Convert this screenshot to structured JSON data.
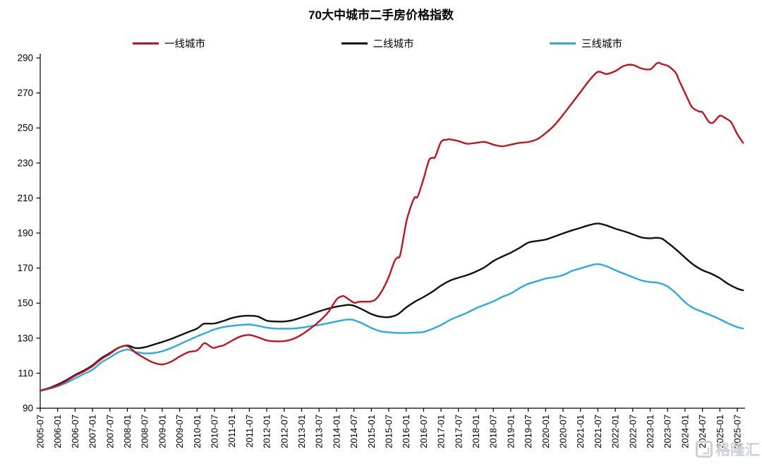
{
  "chart": {
    "title": "70大中城市二手房价格指数"
  },
  "watermark": {
    "text": "格隆汇",
    "icon": "gelonghui-logo",
    "color": "#ccd0d6"
  },
  "chart_data": {
    "type": "line",
    "title": "70大中城市二手房价格指数",
    "xlabel": "",
    "ylabel": "",
    "grid": false,
    "legend_position": "top",
    "ylim": [
      90,
      290
    ],
    "ytick_step": 20,
    "y_tick_labels": [
      "90",
      "110",
      "130",
      "150",
      "170",
      "190",
      "210",
      "230",
      "250",
      "270",
      "290"
    ],
    "x_unit": "months_since_2005-07",
    "x_tick_interval_months": 6,
    "x_tick_labels": [
      "2005-07",
      "2006-01",
      "2006-07",
      "2007-01",
      "2007-07",
      "2008-01",
      "2008-07",
      "2009-01",
      "2009-07",
      "2010-01",
      "2010-07",
      "2011-01",
      "2011-07",
      "2012-01",
      "2012-07",
      "2013-01",
      "2013-07",
      "2014-01",
      "2014-07",
      "2015-01",
      "2015-07",
      "2016-01",
      "2016-07",
      "2017-01",
      "2017-07",
      "2018-01",
      "2018-07",
      "2019-01",
      "2019-07",
      "2020-01",
      "2020-07",
      "2021-01",
      "2021-07",
      "2022-01",
      "2022-07",
      "2023-01",
      "2023-07",
      "2024-01",
      "2024-07",
      "2025-01",
      "2025-07"
    ],
    "series": [
      {
        "name": "二线城市",
        "slug": "second-tier",
        "color": "#111111",
        "points": [
          [
            0,
            100
          ],
          [
            3,
            101.5
          ],
          [
            6,
            103.5
          ],
          [
            9,
            106
          ],
          [
            12,
            109
          ],
          [
            15,
            111.5
          ],
          [
            18,
            114.5
          ],
          [
            21,
            118.5
          ],
          [
            24,
            121.5
          ],
          [
            27,
            124.5
          ],
          [
            30,
            125.8
          ],
          [
            33,
            124.3
          ],
          [
            36,
            124.8
          ],
          [
            39,
            126.3
          ],
          [
            42,
            127.8
          ],
          [
            45,
            129.5
          ],
          [
            48,
            131.5
          ],
          [
            51,
            133.5
          ],
          [
            54,
            135.5
          ],
          [
            56,
            138
          ],
          [
            57,
            138.3
          ],
          [
            60,
            138.4
          ],
          [
            63,
            139.8
          ],
          [
            66,
            141.5
          ],
          [
            69,
            142.5
          ],
          [
            72,
            142.8
          ],
          [
            75,
            142.3
          ],
          [
            78,
            140
          ],
          [
            81,
            139.5
          ],
          [
            84,
            139.5
          ],
          [
            87,
            140.3
          ],
          [
            90,
            141.8
          ],
          [
            93,
            143.5
          ],
          [
            96,
            145.3
          ],
          [
            99,
            146.8
          ],
          [
            102,
            148
          ],
          [
            105,
            148.8
          ],
          [
            106,
            149
          ],
          [
            108,
            148.5
          ],
          [
            111,
            146.3
          ],
          [
            114,
            143.8
          ],
          [
            117,
            142.3
          ],
          [
            120,
            142
          ],
          [
            123,
            143.5
          ],
          [
            126,
            147.5
          ],
          [
            129,
            150.8
          ],
          [
            132,
            153.5
          ],
          [
            135,
            156.5
          ],
          [
            138,
            160
          ],
          [
            141,
            162.8
          ],
          [
            144,
            164.5
          ],
          [
            147,
            166
          ],
          [
            150,
            168
          ],
          [
            153,
            170.5
          ],
          [
            156,
            174
          ],
          [
            159,
            176.5
          ],
          [
            162,
            178.8
          ],
          [
            165,
            181.5
          ],
          [
            168,
            184.5
          ],
          [
            171,
            185.5
          ],
          [
            174,
            186.3
          ],
          [
            177,
            188
          ],
          [
            180,
            189.8
          ],
          [
            183,
            191.5
          ],
          [
            186,
            193
          ],
          [
            189,
            194.5
          ],
          [
            192,
            195.5
          ],
          [
            195,
            194.3
          ],
          [
            198,
            192.5
          ],
          [
            201,
            191
          ],
          [
            204,
            189.3
          ],
          [
            207,
            187.5
          ],
          [
            210,
            187
          ],
          [
            212,
            187.3
          ],
          [
            214,
            186.8
          ],
          [
            216,
            184.5
          ],
          [
            219,
            180.5
          ],
          [
            222,
            176
          ],
          [
            225,
            171.8
          ],
          [
            228,
            168.8
          ],
          [
            231,
            166.8
          ],
          [
            234,
            164.2
          ],
          [
            237,
            160.8
          ],
          [
            240,
            158.3
          ],
          [
            242,
            157.3
          ]
        ]
      },
      {
        "name": "三线城市",
        "slug": "third-tier",
        "color": "#29ABE2",
        "points": [
          [
            0,
            100
          ],
          [
            3,
            101
          ],
          [
            6,
            102.5
          ],
          [
            9,
            104.5
          ],
          [
            12,
            107
          ],
          [
            15,
            109.5
          ],
          [
            18,
            112
          ],
          [
            21,
            116
          ],
          [
            24,
            119
          ],
          [
            27,
            122
          ],
          [
            30,
            123.5
          ],
          [
            33,
            122
          ],
          [
            36,
            121.3
          ],
          [
            39,
            121.5
          ],
          [
            42,
            122.5
          ],
          [
            45,
            124.3
          ],
          [
            48,
            126.5
          ],
          [
            51,
            128.8
          ],
          [
            54,
            131
          ],
          [
            57,
            133
          ],
          [
            60,
            135
          ],
          [
            63,
            136.3
          ],
          [
            66,
            137
          ],
          [
            69,
            137.5
          ],
          [
            72,
            137.8
          ],
          [
            75,
            137
          ],
          [
            78,
            136
          ],
          [
            81,
            135.5
          ],
          [
            84,
            135.4
          ],
          [
            87,
            135.5
          ],
          [
            90,
            136
          ],
          [
            93,
            136.8
          ],
          [
            96,
            137.5
          ],
          [
            99,
            138.5
          ],
          [
            102,
            139.5
          ],
          [
            105,
            140.5
          ],
          [
            107,
            140.6
          ],
          [
            108,
            140.3
          ],
          [
            111,
            138.3
          ],
          [
            114,
            135.8
          ],
          [
            117,
            134
          ],
          [
            120,
            133.3
          ],
          [
            123,
            133
          ],
          [
            126,
            133
          ],
          [
            129,
            133.2
          ],
          [
            132,
            133.5
          ],
          [
            135,
            135.3
          ],
          [
            138,
            137.5
          ],
          [
            141,
            140.3
          ],
          [
            144,
            142.5
          ],
          [
            147,
            144.5
          ],
          [
            150,
            147
          ],
          [
            153,
            149
          ],
          [
            156,
            151
          ],
          [
            159,
            153.5
          ],
          [
            162,
            155.5
          ],
          [
            165,
            158.5
          ],
          [
            168,
            161
          ],
          [
            171,
            162.5
          ],
          [
            174,
            164
          ],
          [
            177,
            164.8
          ],
          [
            180,
            166
          ],
          [
            183,
            168.3
          ],
          [
            186,
            169.8
          ],
          [
            189,
            171.3
          ],
          [
            192,
            172.3
          ],
          [
            195,
            171
          ],
          [
            198,
            168.8
          ],
          [
            201,
            166.8
          ],
          [
            204,
            164.8
          ],
          [
            207,
            163
          ],
          [
            210,
            162
          ],
          [
            213,
            161.5
          ],
          [
            216,
            159.5
          ],
          [
            219,
            155.5
          ],
          [
            222,
            150.5
          ],
          [
            225,
            147
          ],
          [
            228,
            145
          ],
          [
            231,
            143
          ],
          [
            234,
            140.8
          ],
          [
            237,
            138.3
          ],
          [
            240,
            136.3
          ],
          [
            242,
            135.5
          ]
        ]
      },
      {
        "name": "一线城市",
        "slug": "first-tier",
        "color": "#C3131F",
        "points": [
          [
            0,
            100
          ],
          [
            3,
            101.5
          ],
          [
            6,
            103
          ],
          [
            9,
            105.5
          ],
          [
            12,
            108.5
          ],
          [
            15,
            111
          ],
          [
            18,
            114
          ],
          [
            21,
            118
          ],
          [
            24,
            121
          ],
          [
            27,
            124.5
          ],
          [
            30,
            125.5
          ],
          [
            33,
            121.5
          ],
          [
            36,
            118.5
          ],
          [
            39,
            116
          ],
          [
            42,
            115
          ],
          [
            45,
            116.5
          ],
          [
            48,
            119.5
          ],
          [
            51,
            122
          ],
          [
            54,
            123
          ],
          [
            56,
            126.5
          ],
          [
            57,
            127
          ],
          [
            59,
            124.8
          ],
          [
            60,
            124.5
          ],
          [
            62,
            125.5
          ],
          [
            63,
            125.8
          ],
          [
            66,
            128.5
          ],
          [
            69,
            131
          ],
          [
            72,
            131.8
          ],
          [
            75,
            130.5
          ],
          [
            78,
            128.7
          ],
          [
            81,
            128.2
          ],
          [
            84,
            128.3
          ],
          [
            87,
            129.5
          ],
          [
            90,
            132
          ],
          [
            93,
            135.5
          ],
          [
            96,
            139.5
          ],
          [
            99,
            144.5
          ],
          [
            102,
            152
          ],
          [
            104,
            154
          ],
          [
            105,
            153.5
          ],
          [
            108,
            150.3
          ],
          [
            110,
            150.8
          ],
          [
            114,
            151
          ],
          [
            116,
            153
          ],
          [
            118,
            158
          ],
          [
            120,
            165
          ],
          [
            122,
            174
          ],
          [
            123,
            176
          ],
          [
            124,
            178
          ],
          [
            126,
            196
          ],
          [
            127,
            202
          ],
          [
            128,
            207
          ],
          [
            129,
            210.5
          ],
          [
            130,
            211
          ],
          [
            132,
            221
          ],
          [
            133,
            227
          ],
          [
            134,
            232
          ],
          [
            135,
            233
          ],
          [
            136,
            233.5
          ],
          [
            138,
            242
          ],
          [
            140,
            243.3
          ],
          [
            141,
            243.5
          ],
          [
            144,
            242.5
          ],
          [
            147,
            241
          ],
          [
            150,
            241.5
          ],
          [
            153,
            242
          ],
          [
            156,
            240.5
          ],
          [
            159,
            239.5
          ],
          [
            162,
            240.5
          ],
          [
            165,
            241.5
          ],
          [
            168,
            242
          ],
          [
            171,
            243.5
          ],
          [
            174,
            247
          ],
          [
            177,
            251.5
          ],
          [
            180,
            257.5
          ],
          [
            183,
            264
          ],
          [
            186,
            270.5
          ],
          [
            189,
            277
          ],
          [
            192,
            282
          ],
          [
            195,
            280.8
          ],
          [
            198,
            282.5
          ],
          [
            201,
            285.5
          ],
          [
            204,
            286
          ],
          [
            207,
            284
          ],
          [
            210,
            283.5
          ],
          [
            212,
            286.5
          ],
          [
            213,
            287.3
          ],
          [
            214,
            286.5
          ],
          [
            216,
            285.5
          ],
          [
            218,
            283
          ],
          [
            219,
            281
          ],
          [
            220,
            277
          ],
          [
            222,
            270
          ],
          [
            224,
            263
          ],
          [
            225,
            261
          ],
          [
            227,
            259.3
          ],
          [
            228,
            259
          ],
          [
            230,
            254
          ],
          [
            231,
            252.8
          ],
          [
            232,
            253.5
          ],
          [
            234,
            257
          ],
          [
            236,
            255.5
          ],
          [
            237,
            254.5
          ],
          [
            238,
            253
          ],
          [
            240,
            246.5
          ],
          [
            242,
            241.5
          ]
        ]
      }
    ],
    "legend_order": [
      2,
      0,
      1
    ]
  }
}
